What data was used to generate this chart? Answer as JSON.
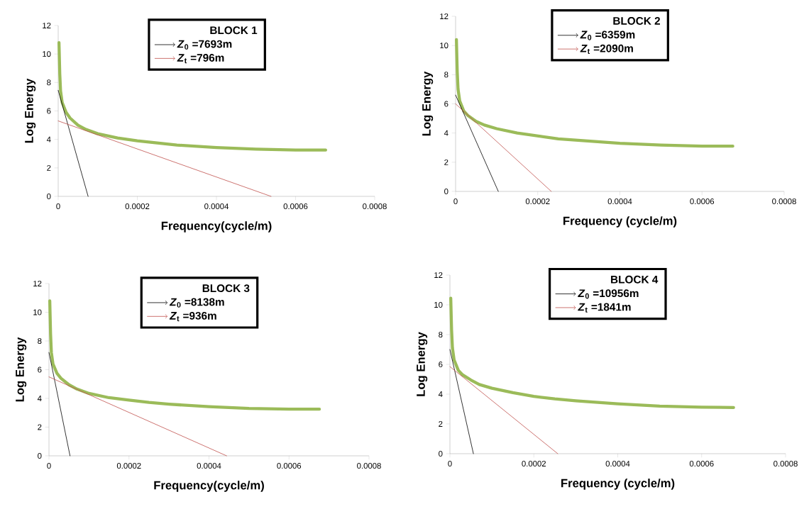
{
  "chart_data": [
    {
      "type": "line",
      "xlabel": "Frequency(cycle/m)",
      "ylabel": "Log Energy",
      "legend_title": "BLOCK 1",
      "legend": "top",
      "xlim": [
        0,
        0.0008
      ],
      "xticks": [
        0,
        0.0002,
        0.0004,
        0.0006,
        0.0008
      ],
      "ylim": [
        0,
        12
      ],
      "yticks": [
        0,
        2,
        4,
        6,
        8,
        10,
        12
      ],
      "series": [
        {
          "color": "#9bbb59",
          "x": [
            2e-06,
            4e-06,
            6e-06,
            1e-05,
            2e-05,
            3e-05,
            5e-05,
            7e-05,
            0.0001,
            0.00015,
            0.0002,
            0.00025,
            0.0003,
            0.0004,
            0.0005,
            0.0006,
            0.000676
          ],
          "values": [
            10.8,
            8.6,
            7.4,
            6.6,
            5.9,
            5.5,
            5.0,
            4.7,
            4.4,
            4.1,
            3.9,
            3.75,
            3.6,
            3.43,
            3.32,
            3.25,
            3.25
          ]
        },
        {
          "name": "*Z*$_{0}$ =7693m",
          "color": "#000000",
          "x": [
            0,
            7.56e-05
          ],
          "values": [
            7.45,
            0
          ]
        },
        {
          "name": "*Z*$_{t}$ =796m",
          "color": "#c0504d",
          "x": [
            0,
            0.000538
          ],
          "values": [
            5.3,
            0
          ]
        }
      ]
    },
    {
      "type": "line",
      "xlabel": "Frequency (cycle/m)",
      "ylabel": "Log Energy",
      "legend_title": "BLOCK 2",
      "legend": "top",
      "xlim": [
        0,
        0.0008
      ],
      "xticks": [
        0,
        0.0002,
        0.0004,
        0.0006,
        0.0008
      ],
      "ylim": [
        0,
        12
      ],
      "yticks": [
        0,
        2,
        4,
        6,
        8,
        10,
        12
      ],
      "series": [
        {
          "color": "#9bbb59",
          "x": [
            2e-06,
            4e-06,
            6e-06,
            1e-05,
            2e-05,
            3e-05,
            5e-05,
            7e-05,
            0.0001,
            0.00015,
            0.0002,
            0.00025,
            0.0003,
            0.0004,
            0.0005,
            0.0006,
            0.000675
          ],
          "values": [
            10.4,
            8.2,
            7.0,
            6.2,
            5.5,
            5.2,
            4.8,
            4.55,
            4.3,
            4.0,
            3.8,
            3.6,
            3.5,
            3.3,
            3.18,
            3.1,
            3.1
          ]
        },
        {
          "name": "*Z*$_{0}$ =6359m",
          "color": "#000000",
          "x": [
            0,
            0.000104
          ],
          "values": [
            6.6,
            0
          ]
        },
        {
          "name": "*Z*$_{t}$ =2090m",
          "color": "#c0504d",
          "x": [
            0,
            0.000233
          ],
          "values": [
            6.0,
            0
          ]
        }
      ]
    },
    {
      "type": "line",
      "xlabel": "Frequency(cycle/m)",
      "ylabel": "Log Energy",
      "legend_title": "BLOCK 3",
      "legend": "top",
      "xlim": [
        0,
        0.0008
      ],
      "xticks": [
        0,
        0.0002,
        0.0004,
        0.0006,
        0.0008
      ],
      "ylim": [
        0,
        12
      ],
      "yticks": [
        0,
        2,
        4,
        6,
        8,
        10,
        12
      ],
      "series": [
        {
          "color": "#9bbb59",
          "x": [
            2e-06,
            4e-06,
            6e-06,
            1e-05,
            2e-05,
            3e-05,
            5e-05,
            7e-05,
            0.0001,
            0.00015,
            0.0002,
            0.00025,
            0.0003,
            0.0004,
            0.0005,
            0.0006,
            0.000676
          ],
          "values": [
            10.8,
            8.5,
            7.2,
            6.4,
            5.75,
            5.4,
            4.95,
            4.65,
            4.35,
            4.05,
            3.88,
            3.72,
            3.6,
            3.42,
            3.3,
            3.25,
            3.25
          ]
        },
        {
          "name": "*Z*$_{0}$ =8138m",
          "color": "#000000",
          "x": [
            0,
            5.26e-05
          ],
          "values": [
            7.2,
            0
          ]
        },
        {
          "name": "*Z*$_{t}$ =936m",
          "color": "#c0504d",
          "x": [
            0,
            0.000444
          ],
          "values": [
            5.5,
            0
          ]
        }
      ]
    },
    {
      "type": "line",
      "xlabel": "Frequency (cycle/m)",
      "ylabel": "Log Energy",
      "legend_title": "BLOCK 4",
      "legend": "top",
      "xlim": [
        0,
        0.0008
      ],
      "xticks": [
        0,
        0.0002,
        0.0004,
        0.0006,
        0.0008
      ],
      "ylim": [
        0,
        12
      ],
      "yticks": [
        0,
        2,
        4,
        6,
        8,
        10,
        12
      ],
      "series": [
        {
          "color": "#9bbb59",
          "x": [
            2e-06,
            4e-06,
            6e-06,
            1e-05,
            2e-05,
            3e-05,
            5e-05,
            7e-05,
            0.0001,
            0.00015,
            0.0002,
            0.00025,
            0.0003,
            0.0004,
            0.0005,
            0.0006,
            0.000676
          ],
          "values": [
            10.45,
            8.3,
            7.1,
            6.3,
            5.6,
            5.3,
            4.95,
            4.65,
            4.4,
            4.1,
            3.85,
            3.68,
            3.55,
            3.35,
            3.2,
            3.12,
            3.1
          ]
        },
        {
          "name": "*Z*$_{0}$ =10956m",
          "color": "#000000",
          "x": [
            0,
            5.6e-05
          ],
          "values": [
            7.0,
            0
          ]
        },
        {
          "name": "*Z*$_{t}$ =1841m",
          "color": "#c0504d",
          "x": [
            0,
            0.000257
          ],
          "values": [
            5.85,
            0
          ]
        }
      ]
    }
  ]
}
